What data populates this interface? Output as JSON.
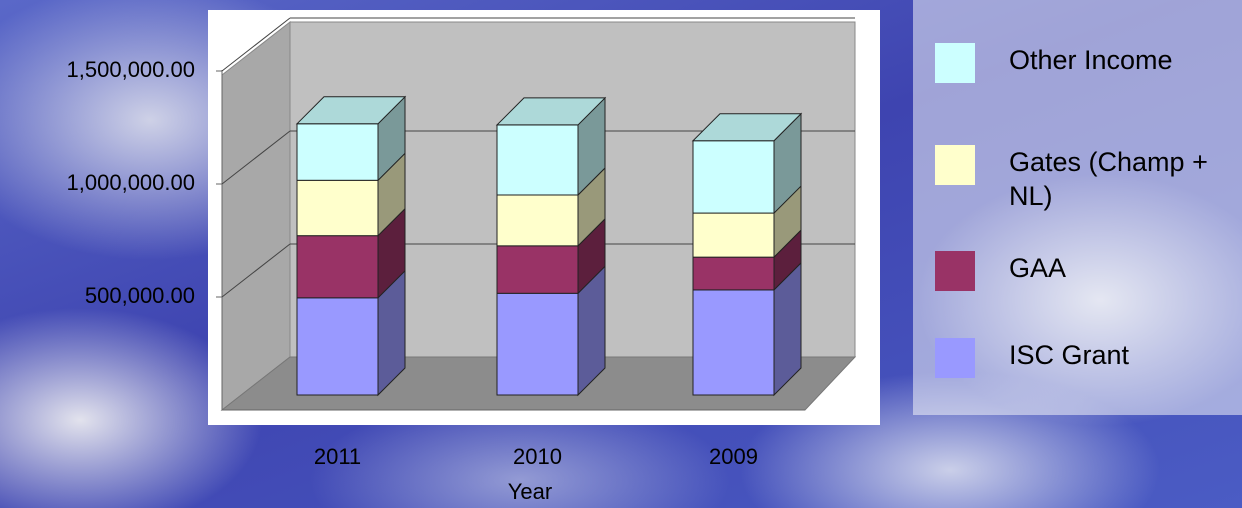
{
  "chart_data": {
    "type": "bar3d_stacked",
    "x_label": "Year",
    "categories": [
      "2011",
      "2010",
      "2009"
    ],
    "series": [
      {
        "name": "ISC Grant",
        "color": "#9999ff",
        "values": [
          430000,
          450000,
          465000
        ]
      },
      {
        "name": "GAA",
        "color": "#993366",
        "values": [
          275000,
          210000,
          145000
        ]
      },
      {
        "name": "Gates (Champ + NL)",
        "color": "#ffffcc",
        "values": [
          245000,
          225000,
          195000
        ]
      },
      {
        "name": "Other Income",
        "color": "#ccffff",
        "values": [
          250000,
          310000,
          320000
        ]
      }
    ],
    "ylim": [
      0,
      1500000
    ],
    "yticks": [
      {
        "value": 500000,
        "label": "500,000.00"
      },
      {
        "value": 1000000,
        "label": "1,000,000.00"
      },
      {
        "value": 1500000,
        "label": "1,500,000.00"
      }
    ],
    "grid": true,
    "legend": "right"
  }
}
